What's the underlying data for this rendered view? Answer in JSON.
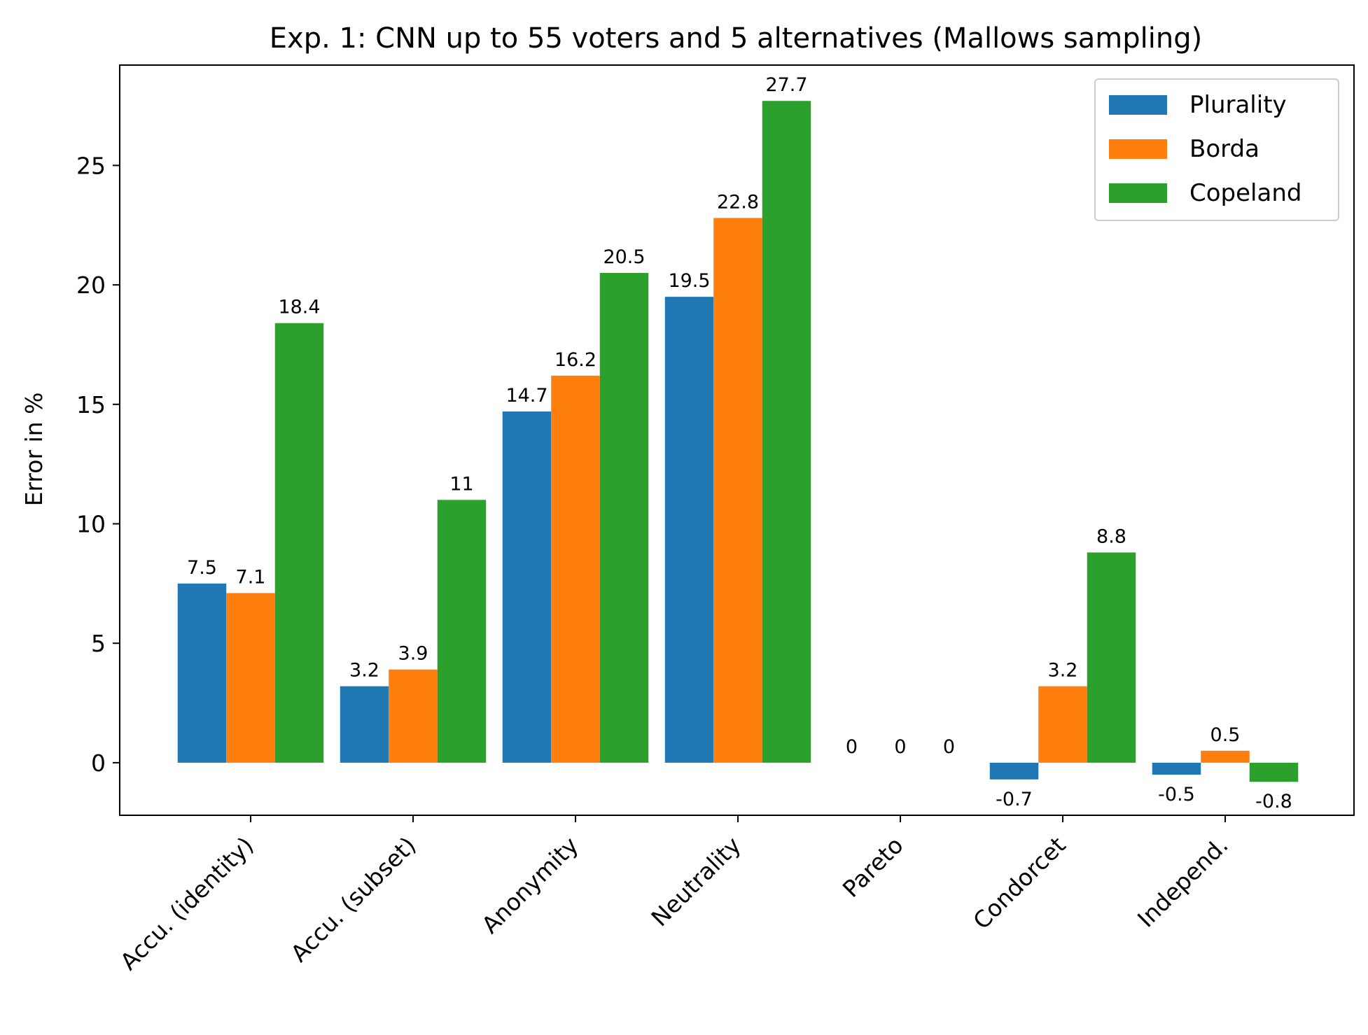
{
  "chart_data": {
    "type": "bar",
    "title": "Exp. 1: CNN up to 55 voters and 5 alternatives (Mallows sampling)",
    "xlabel": "",
    "ylabel": "Error in %",
    "ylim": [
      -2.2,
      29.2
    ],
    "yticks": [
      0,
      5,
      10,
      15,
      20,
      25
    ],
    "categories": [
      "Accu. (identity)",
      "Accu. (subset)",
      "Anonymity",
      "Neutrality",
      "Pareto",
      "Condorcet",
      "Independ."
    ],
    "series": [
      {
        "name": "Plurality",
        "color": "#1f77b4",
        "values": [
          7.5,
          3.2,
          14.7,
          19.5,
          0,
          -0.7,
          -0.5
        ]
      },
      {
        "name": "Borda",
        "color": "#ff7f0e",
        "values": [
          7.1,
          3.9,
          16.2,
          22.8,
          0,
          3.2,
          0.5
        ]
      },
      {
        "name": "Copeland",
        "color": "#2ca02c",
        "values": [
          18.4,
          11,
          20.5,
          27.7,
          0,
          8.8,
          -0.8
        ]
      }
    ],
    "legend_position": "top-right",
    "grid": false
  }
}
